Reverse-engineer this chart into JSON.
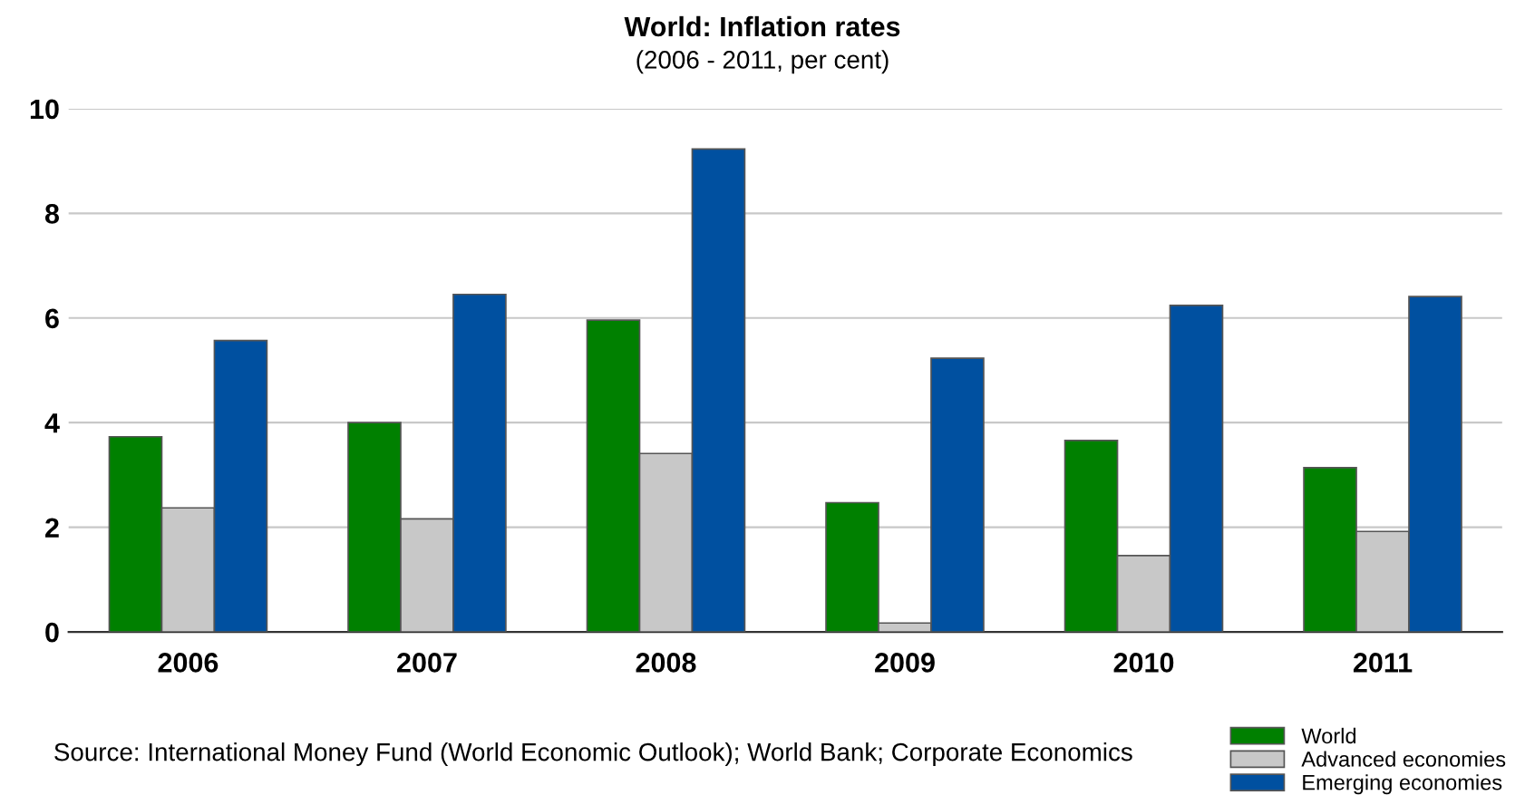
{
  "chart_data": {
    "type": "bar",
    "title": "World: Inflation rates",
    "subtitle": "(2006 - 2011, per cent)",
    "categories": [
      "2006",
      "2007",
      "2008",
      "2009",
      "2010",
      "2011"
    ],
    "series": [
      {
        "name": "World",
        "color": "#008000",
        "values": [
          3.73,
          4.0,
          5.96,
          2.47,
          3.66,
          3.14
        ]
      },
      {
        "name": "Advanced economies",
        "color": "#c8c8c8",
        "values": [
          2.37,
          2.16,
          3.41,
          0.17,
          1.46,
          1.92
        ]
      },
      {
        "name": "Emerging economies",
        "color": "#0050a0",
        "values": [
          5.57,
          6.45,
          9.23,
          5.23,
          6.24,
          6.41
        ]
      }
    ],
    "ylim": [
      0,
      10
    ],
    "yticks": [
      0,
      2,
      4,
      6,
      8,
      10
    ],
    "grid": "y",
    "legend": "bottom right",
    "annotations": [
      "Source: International Money Fund (World Economic Outlook); World Bank; Corporate Economics"
    ]
  }
}
